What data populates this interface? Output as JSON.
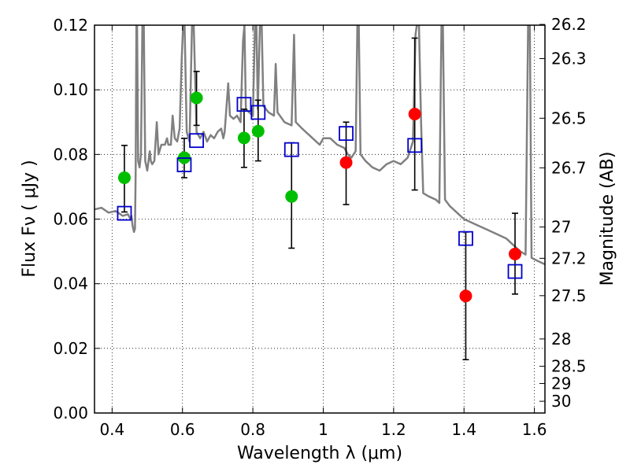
{
  "chart_data": {
    "type": "scatter",
    "title": "",
    "xlabel": "Wavelength  λ (μm)",
    "ylabel": "Flux  Fν  ( μJy )",
    "y2label": "Magnitude (AB)",
    "xlim": [
      0.35,
      1.63
    ],
    "ylim": [
      0.0,
      0.12
    ],
    "grid": true,
    "x_ticks": [
      {
        "value": 0.4,
        "label": "0.4"
      },
      {
        "value": 0.6,
        "label": "0.6"
      },
      {
        "value": 0.8,
        "label": "0.8"
      },
      {
        "value": 1.0,
        "label": "1"
      },
      {
        "value": 1.2,
        "label": "1.2"
      },
      {
        "value": 1.4,
        "label": "1.4"
      },
      {
        "value": 1.6,
        "label": "1.6"
      }
    ],
    "y_ticks": [
      {
        "value": 0.0,
        "label": "0.00"
      },
      {
        "value": 0.02,
        "label": "0.02"
      },
      {
        "value": 0.04,
        "label": "0.04"
      },
      {
        "value": 0.06,
        "label": "0.06"
      },
      {
        "value": 0.08,
        "label": "0.08"
      },
      {
        "value": 0.1,
        "label": "0.10"
      },
      {
        "value": 0.12,
        "label": "0.12"
      }
    ],
    "y2_ticks": [
      {
        "value": 26.2,
        "label": "26.2"
      },
      {
        "value": 26.3,
        "label": "26.3"
      },
      {
        "value": 26.5,
        "label": "26.5"
      },
      {
        "value": 26.7,
        "label": "26.7"
      },
      {
        "value": 27.0,
        "label": "27"
      },
      {
        "value": 27.2,
        "label": "27.2"
      },
      {
        "value": 27.5,
        "label": "27.5"
      },
      {
        "value": 28.0,
        "label": "28"
      },
      {
        "value": 28.5,
        "label": "28.5"
      },
      {
        "value": 29.0,
        "label": "29"
      },
      {
        "value": 30.0,
        "label": "30"
      }
    ],
    "series": [
      {
        "kind": "line",
        "color": "#808080",
        "points": [
          [
            0.35,
            0.063
          ],
          [
            0.37,
            0.0635
          ],
          [
            0.39,
            0.062
          ],
          [
            0.41,
            0.0625
          ],
          [
            0.43,
            0.061
          ],
          [
            0.445,
            0.0615
          ],
          [
            0.452,
            0.06
          ],
          [
            0.455,
            0.061
          ],
          [
            0.458,
            0.058
          ],
          [
            0.462,
            0.056
          ],
          [
            0.465,
            0.057
          ],
          [
            0.467,
            0.075
          ],
          [
            0.469,
            0.12
          ],
          [
            0.471,
            0.12
          ],
          [
            0.474,
            0.078
          ],
          [
            0.478,
            0.076
          ],
          [
            0.482,
            0.08
          ],
          [
            0.486,
            0.12
          ],
          [
            0.49,
            0.12
          ],
          [
            0.494,
            0.078
          ],
          [
            0.5,
            0.075
          ],
          [
            0.507,
            0.081
          ],
          [
            0.51,
            0.078
          ],
          [
            0.514,
            0.077
          ],
          [
            0.52,
            0.078
          ],
          [
            0.527,
            0.09
          ],
          [
            0.532,
            0.08
          ],
          [
            0.54,
            0.083
          ],
          [
            0.55,
            0.083
          ],
          [
            0.556,
            0.085
          ],
          [
            0.56,
            0.083
          ],
          [
            0.567,
            0.083
          ],
          [
            0.572,
            0.092
          ],
          [
            0.578,
            0.085
          ],
          [
            0.585,
            0.084
          ],
          [
            0.592,
            0.088
          ],
          [
            0.598,
            0.11
          ],
          [
            0.602,
            0.12
          ],
          [
            0.606,
            0.12
          ],
          [
            0.612,
            0.087
          ],
          [
            0.62,
            0.084
          ],
          [
            0.627,
            0.12
          ],
          [
            0.632,
            0.12
          ],
          [
            0.64,
            0.087
          ],
          [
            0.65,
            0.085
          ],
          [
            0.66,
            0.087
          ],
          [
            0.67,
            0.084
          ],
          [
            0.68,
            0.086
          ],
          [
            0.69,
            0.085
          ],
          [
            0.7,
            0.087
          ],
          [
            0.71,
            0.088
          ],
          [
            0.716,
            0.085
          ],
          [
            0.72,
            0.087
          ],
          [
            0.73,
            0.102
          ],
          [
            0.735,
            0.092
          ],
          [
            0.745,
            0.091
          ],
          [
            0.755,
            0.092
          ],
          [
            0.765,
            0.09
          ],
          [
            0.772,
            0.115
          ],
          [
            0.776,
            0.12
          ],
          [
            0.78,
            0.094
          ],
          [
            0.79,
            0.093
          ],
          [
            0.8,
            0.092
          ],
          [
            0.806,
            0.12
          ],
          [
            0.81,
            0.12
          ],
          [
            0.814,
            0.094
          ],
          [
            0.82,
            0.12
          ],
          [
            0.825,
            0.12
          ],
          [
            0.83,
            0.095
          ],
          [
            0.845,
            0.093
          ],
          [
            0.86,
            0.092
          ],
          [
            0.865,
            0.108
          ],
          [
            0.87,
            0.093
          ],
          [
            0.89,
            0.09
          ],
          [
            0.91,
            0.089
          ],
          [
            0.917,
            0.117
          ],
          [
            0.922,
            0.09
          ],
          [
            0.94,
            0.088
          ],
          [
            0.96,
            0.086
          ],
          [
            0.98,
            0.084
          ],
          [
            0.99,
            0.083
          ],
          [
            1.0,
            0.085
          ],
          [
            1.02,
            0.085
          ],
          [
            1.04,
            0.083
          ],
          [
            1.06,
            0.082
          ],
          [
            1.07,
            0.08
          ],
          [
            1.08,
            0.079
          ],
          [
            1.092,
            0.081
          ],
          [
            1.097,
            0.12
          ],
          [
            1.101,
            0.12
          ],
          [
            1.106,
            0.08
          ],
          [
            1.12,
            0.078
          ],
          [
            1.14,
            0.076
          ],
          [
            1.16,
            0.075
          ],
          [
            1.18,
            0.077
          ],
          [
            1.2,
            0.078
          ],
          [
            1.22,
            0.077
          ],
          [
            1.24,
            0.079
          ],
          [
            1.255,
            0.084
          ],
          [
            1.262,
            0.117
          ],
          [
            1.266,
            0.12
          ],
          [
            1.272,
            0.12
          ],
          [
            1.278,
            0.09
          ],
          [
            1.284,
            0.068
          ],
          [
            1.3,
            0.067
          ],
          [
            1.32,
            0.066
          ],
          [
            1.33,
            0.065
          ],
          [
            1.336,
            0.12
          ],
          [
            1.34,
            0.12
          ],
          [
            1.346,
            0.066
          ],
          [
            1.36,
            0.064
          ],
          [
            1.38,
            0.062
          ],
          [
            1.4,
            0.06
          ],
          [
            1.42,
            0.059
          ],
          [
            1.44,
            0.058
          ],
          [
            1.46,
            0.057
          ],
          [
            1.48,
            0.056
          ],
          [
            1.5,
            0.055
          ],
          [
            1.52,
            0.054
          ],
          [
            1.54,
            0.052
          ],
          [
            1.56,
            0.05
          ],
          [
            1.575,
            0.049
          ],
          [
            1.582,
            0.12
          ],
          [
            1.587,
            0.12
          ],
          [
            1.592,
            0.048
          ],
          [
            1.61,
            0.047
          ],
          [
            1.63,
            0.046
          ]
        ]
      },
      {
        "kind": "points",
        "marker": "circle",
        "color": "#00bf00",
        "points": [
          {
            "x": 0.435,
            "y": 0.0728,
            "ylo": 0.0622,
            "yhi": 0.0828
          },
          {
            "x": 0.605,
            "y": 0.079,
            "ylo": 0.0728,
            "yhi": 0.085
          },
          {
            "x": 0.64,
            "y": 0.0975,
            "ylo": 0.089,
            "yhi": 0.1057
          },
          {
            "x": 0.775,
            "y": 0.0851,
            "ylo": 0.076,
            "yhi": 0.094
          },
          {
            "x": 0.815,
            "y": 0.0872,
            "ylo": 0.078,
            "yhi": 0.0968
          },
          {
            "x": 0.91,
            "y": 0.067,
            "ylo": 0.051,
            "yhi": 0.0836
          }
        ]
      },
      {
        "kind": "points",
        "marker": "circle",
        "color": "#ff0000",
        "points": [
          {
            "x": 1.065,
            "y": 0.0775,
            "ylo": 0.0645,
            "yhi": 0.09
          },
          {
            "x": 1.26,
            "y": 0.0925,
            "ylo": 0.069,
            "yhi": 0.116
          },
          {
            "x": 1.405,
            "y": 0.0362,
            "ylo": 0.0165,
            "yhi": 0.056
          },
          {
            "x": 1.545,
            "y": 0.0492,
            "ylo": 0.0368,
            "yhi": 0.0618
          }
        ]
      },
      {
        "kind": "points",
        "marker": "square",
        "color": "#0000cc",
        "points": [
          {
            "x": 0.435,
            "y": 0.0618
          },
          {
            "x": 0.605,
            "y": 0.0768
          },
          {
            "x": 0.64,
            "y": 0.0843
          },
          {
            "x": 0.775,
            "y": 0.0955
          },
          {
            "x": 0.815,
            "y": 0.093
          },
          {
            "x": 0.91,
            "y": 0.0815
          },
          {
            "x": 1.065,
            "y": 0.0865
          },
          {
            "x": 1.26,
            "y": 0.0828
          },
          {
            "x": 1.405,
            "y": 0.054
          },
          {
            "x": 1.545,
            "y": 0.0438
          }
        ]
      }
    ]
  }
}
